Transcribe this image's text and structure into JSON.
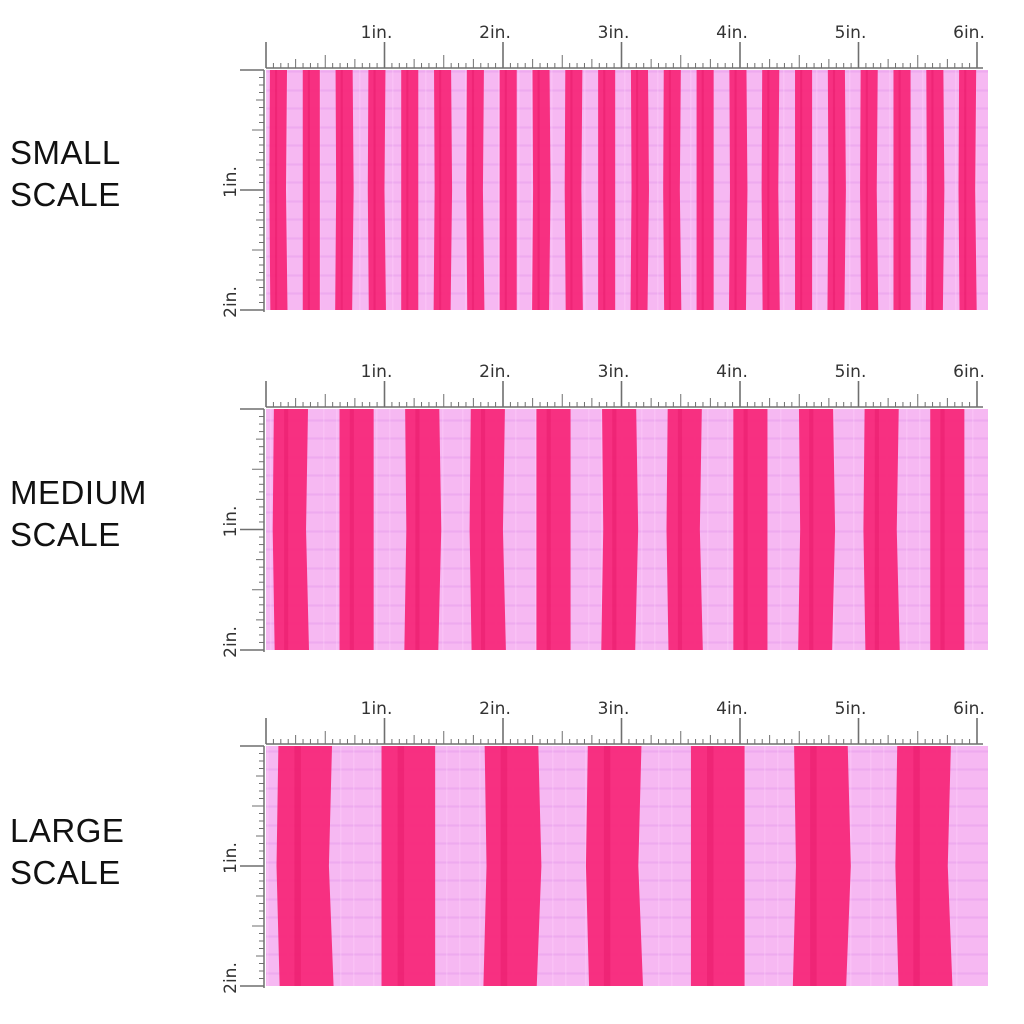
{
  "colors": {
    "background": "#f6b8f2",
    "stripe": "#f7287a",
    "ruler": "#6f6f6f"
  },
  "panels": [
    {
      "id": "small",
      "label_line1": "SMALL",
      "label_line2": "SCALE",
      "stripe_count": 22
    },
    {
      "id": "medium",
      "label_line1": "MEDIUM",
      "label_line2": "SCALE",
      "stripe_count": 11
    },
    {
      "id": "large",
      "label_line1": "LARGE",
      "label_line2": "SCALE",
      "stripe_count": 7
    }
  ],
  "ruler": {
    "top_labels": [
      "1in.",
      "2in.",
      "3in.",
      "4in.",
      "5in.",
      "6in."
    ],
    "side_labels": [
      "1in.",
      "2in."
    ]
  }
}
